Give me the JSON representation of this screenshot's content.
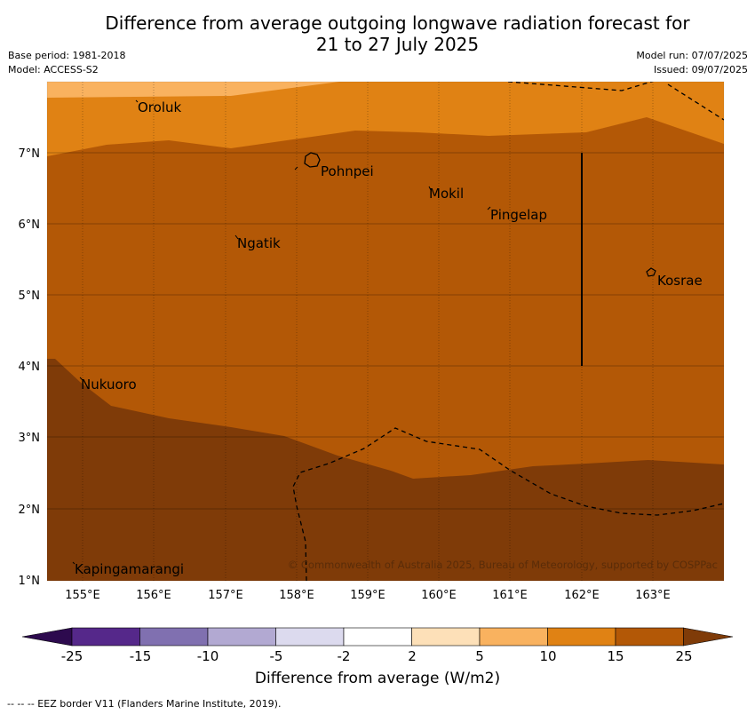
{
  "title_line1": "Difference from average outgoing longwave radiation forecast for",
  "title_line2": "21 to 27 July 2025",
  "meta_left": [
    "Base period: 1981-2018",
    "Model: ACCESS-S2"
  ],
  "meta_right": [
    "Model run: 07/07/2025",
    "Issued: 09/07/2025"
  ],
  "map": {
    "lon_range": [
      154.5,
      164.0
    ],
    "lat_range": [
      1.0,
      8.0
    ],
    "lon_ticks": [
      "155°E",
      "156°E",
      "157°E",
      "158°E",
      "159°E",
      "160°E",
      "161°E",
      "162°E",
      "163°E"
    ],
    "lat_ticks": [
      "7°N",
      "6°N",
      "5°N",
      "4°N",
      "3°N",
      "2°N",
      "1°N"
    ],
    "places": [
      {
        "name": "Oroluk",
        "lon": 155.8,
        "lat": 7.6
      },
      {
        "name": "Pohnpei",
        "lon": 158.3,
        "lat": 6.85
      },
      {
        "name": "Mokil",
        "lon": 159.9,
        "lat": 6.4
      },
      {
        "name": "Pingelap",
        "lon": 160.7,
        "lat": 6.1
      },
      {
        "name": "Ngatik",
        "lon": 157.2,
        "lat": 5.75
      },
      {
        "name": "Kosrae",
        "lon": 163.0,
        "lat": 5.3
      },
      {
        "name": "Nukuoro",
        "lon": 154.95,
        "lat": 3.75
      },
      {
        "name": "Kapingamarangi",
        "lon": 154.9,
        "lat": 1.1
      }
    ],
    "copyright": "© Commonwealth of Australia 2025, Bureau of Meteorology, supported by COSPPac"
  },
  "colorbar": {
    "labels": [
      "-25",
      "-15",
      "-10",
      "-5",
      "-2",
      "2",
      "5",
      "10",
      "15",
      "25"
    ],
    "colors": [
      "#2d0a4e",
      "#55288a",
      "#8070b0",
      "#b2a9d2",
      "#dcdaee",
      "#ffffff",
      "#fde0b8",
      "#f9b25f",
      "#e08214",
      "#b35806",
      "#7f3b08"
    ],
    "title": "Difference from average (W/m2)"
  },
  "footer": "--  --  -- EEZ border V11 (Flanders Marine Institute, 2019)."
}
